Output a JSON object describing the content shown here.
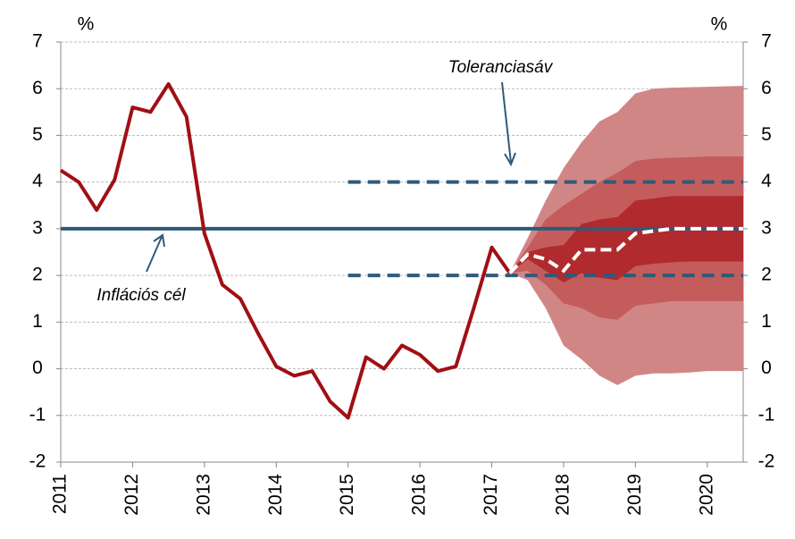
{
  "chart_data": {
    "type": "line",
    "y_label": "%",
    "y2_label": "%",
    "xlim": [
      2011,
      2020.5
    ],
    "xticks": [
      2011,
      2012,
      2013,
      2014,
      2015,
      2016,
      2017,
      2018,
      2019,
      2020
    ],
    "ylim": [
      -2,
      7
    ],
    "yticks": [
      -2,
      -1,
      0,
      1,
      2,
      3,
      4,
      5,
      6,
      7
    ],
    "y2lim": [
      -2,
      7
    ],
    "y2ticks": [
      -2,
      -1,
      0,
      1,
      2,
      3,
      4,
      5,
      6,
      7
    ],
    "grid": true,
    "history": {
      "color": "#a00f14",
      "x": [
        2011,
        2011.25,
        2011.5,
        2011.75,
        2012,
        2012.25,
        2012.5,
        2012.75,
        2013,
        2013.25,
        2013.5,
        2013.75,
        2014,
        2014.25,
        2014.5,
        2014.75,
        2015,
        2015.25,
        2015.5,
        2015.75,
        2016,
        2016.25,
        2016.5,
        2016.75,
        2017,
        2017.25
      ],
      "values": [
        4.25,
        4.0,
        3.4,
        4.05,
        5.6,
        5.5,
        6.1,
        5.4,
        2.9,
        1.8,
        1.5,
        0.75,
        0.05,
        -0.15,
        -0.05,
        -0.7,
        -1.05,
        0.25,
        0.0,
        0.5,
        0.3,
        -0.05,
        0.05,
        1.3,
        2.6,
        2.05
      ]
    },
    "fan_x": [
      2017.25,
      2017.5,
      2017.75,
      2018,
      2018.25,
      2018.5,
      2018.75,
      2019,
      2019.25,
      2019.5,
      2019.75,
      2020,
      2020.25,
      2020.5
    ],
    "fan": [
      {
        "color": "#d18686",
        "upper": [
          2.05,
          2.8,
          3.6,
          4.3,
          4.85,
          5.3,
          5.5,
          5.9,
          6.0,
          6.02,
          6.03,
          6.04,
          6.05,
          6.06
        ],
        "lower": [
          2.05,
          1.9,
          1.3,
          0.5,
          0.2,
          -0.15,
          -0.35,
          -0.15,
          -0.1,
          -0.1,
          -0.08,
          -0.05,
          -0.05,
          -0.05
        ]
      },
      {
        "color": "#c45c5c",
        "upper": [
          2.05,
          2.6,
          3.2,
          3.5,
          3.75,
          4.0,
          4.2,
          4.45,
          4.5,
          4.52,
          4.53,
          4.55,
          4.55,
          4.55
        ],
        "lower": [
          2.05,
          2.1,
          1.8,
          1.4,
          1.3,
          1.1,
          1.05,
          1.35,
          1.4,
          1.45,
          1.45,
          1.45,
          1.45,
          1.45
        ]
      },
      {
        "color": "#b02a2e",
        "upper": [
          2.05,
          2.5,
          2.6,
          2.65,
          3.1,
          3.2,
          3.25,
          3.6,
          3.65,
          3.7,
          3.7,
          3.7,
          3.7,
          3.7
        ],
        "lower": [
          2.05,
          2.35,
          2.1,
          1.85,
          2.05,
          1.95,
          1.9,
          2.2,
          2.25,
          2.28,
          2.3,
          2.3,
          2.3,
          2.3
        ]
      }
    ],
    "forecast": {
      "color": "#ffffff",
      "values": [
        2.05,
        2.45,
        2.35,
        2.1,
        2.55,
        2.55,
        2.55,
        2.9,
        2.95,
        3.0,
        3.0,
        3.0,
        3.0,
        3.0
      ]
    },
    "reference_lines": [
      {
        "value": 3,
        "color": "#2f5a7a",
        "style": "solid",
        "x_start": 2011
      },
      {
        "value": 4,
        "color": "#2f5a7a",
        "style": "dashed",
        "x_start": 2015
      },
      {
        "value": 2,
        "color": "#2f5a7a",
        "style": "dashed",
        "x_start": 2015
      }
    ],
    "annotations": [
      {
        "text": "Toleranciasáv"
      },
      {
        "text": "Inflációs cél"
      }
    ]
  }
}
